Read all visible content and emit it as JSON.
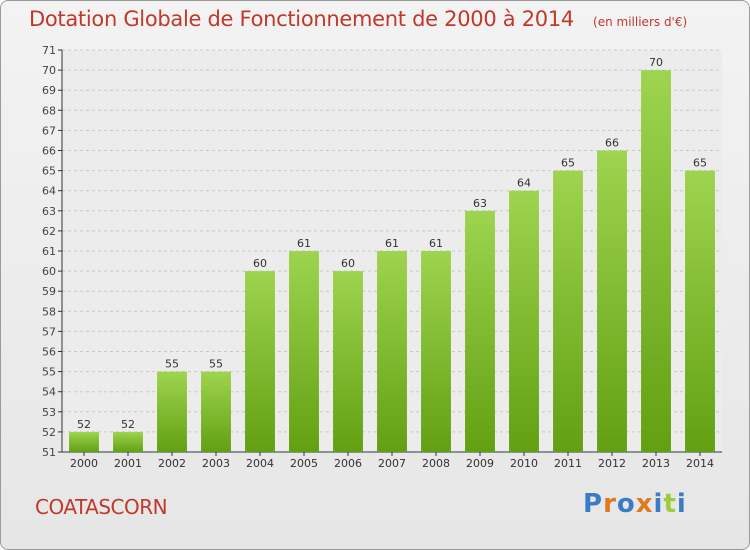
{
  "header": {
    "title": "Dotation Globale de Fonctionnement de 2000 à 2014",
    "unit": "(en milliers d'€)"
  },
  "footer": {
    "commune": "COATASCORN",
    "brand": "Proxiti"
  },
  "colors": {
    "title": "#c0392b",
    "bar_light": "#9ed44f",
    "bar_dark": "#62a012",
    "grid": "#c8c8c8",
    "axis": "#333333",
    "brand_letters": [
      "#3b7dc4",
      "#e07a1f",
      "#3b7dc4",
      "#e07a1f",
      "#3b7dc4",
      "#9ccc3c",
      "#3b7dc4"
    ]
  },
  "chart_data": {
    "type": "bar",
    "title": "Dotation Globale de Fonctionnement de 2000 à 2014",
    "subtitle": "(en milliers d'€)",
    "xlabel": "",
    "ylabel": "",
    "categories": [
      "2000",
      "2001",
      "2002",
      "2003",
      "2004",
      "2005",
      "2006",
      "2007",
      "2008",
      "2009",
      "2010",
      "2011",
      "2012",
      "2013",
      "2014"
    ],
    "values": [
      52,
      52,
      55,
      55,
      60,
      61,
      60,
      61,
      61,
      63,
      64,
      65,
      66,
      70,
      65
    ],
    "ylim": [
      51,
      71
    ],
    "yticks": [
      51,
      52,
      53,
      54,
      55,
      56,
      57,
      58,
      59,
      60,
      61,
      62,
      63,
      64,
      65,
      66,
      67,
      68,
      69,
      70,
      71
    ],
    "grid": true,
    "legend": "none"
  }
}
